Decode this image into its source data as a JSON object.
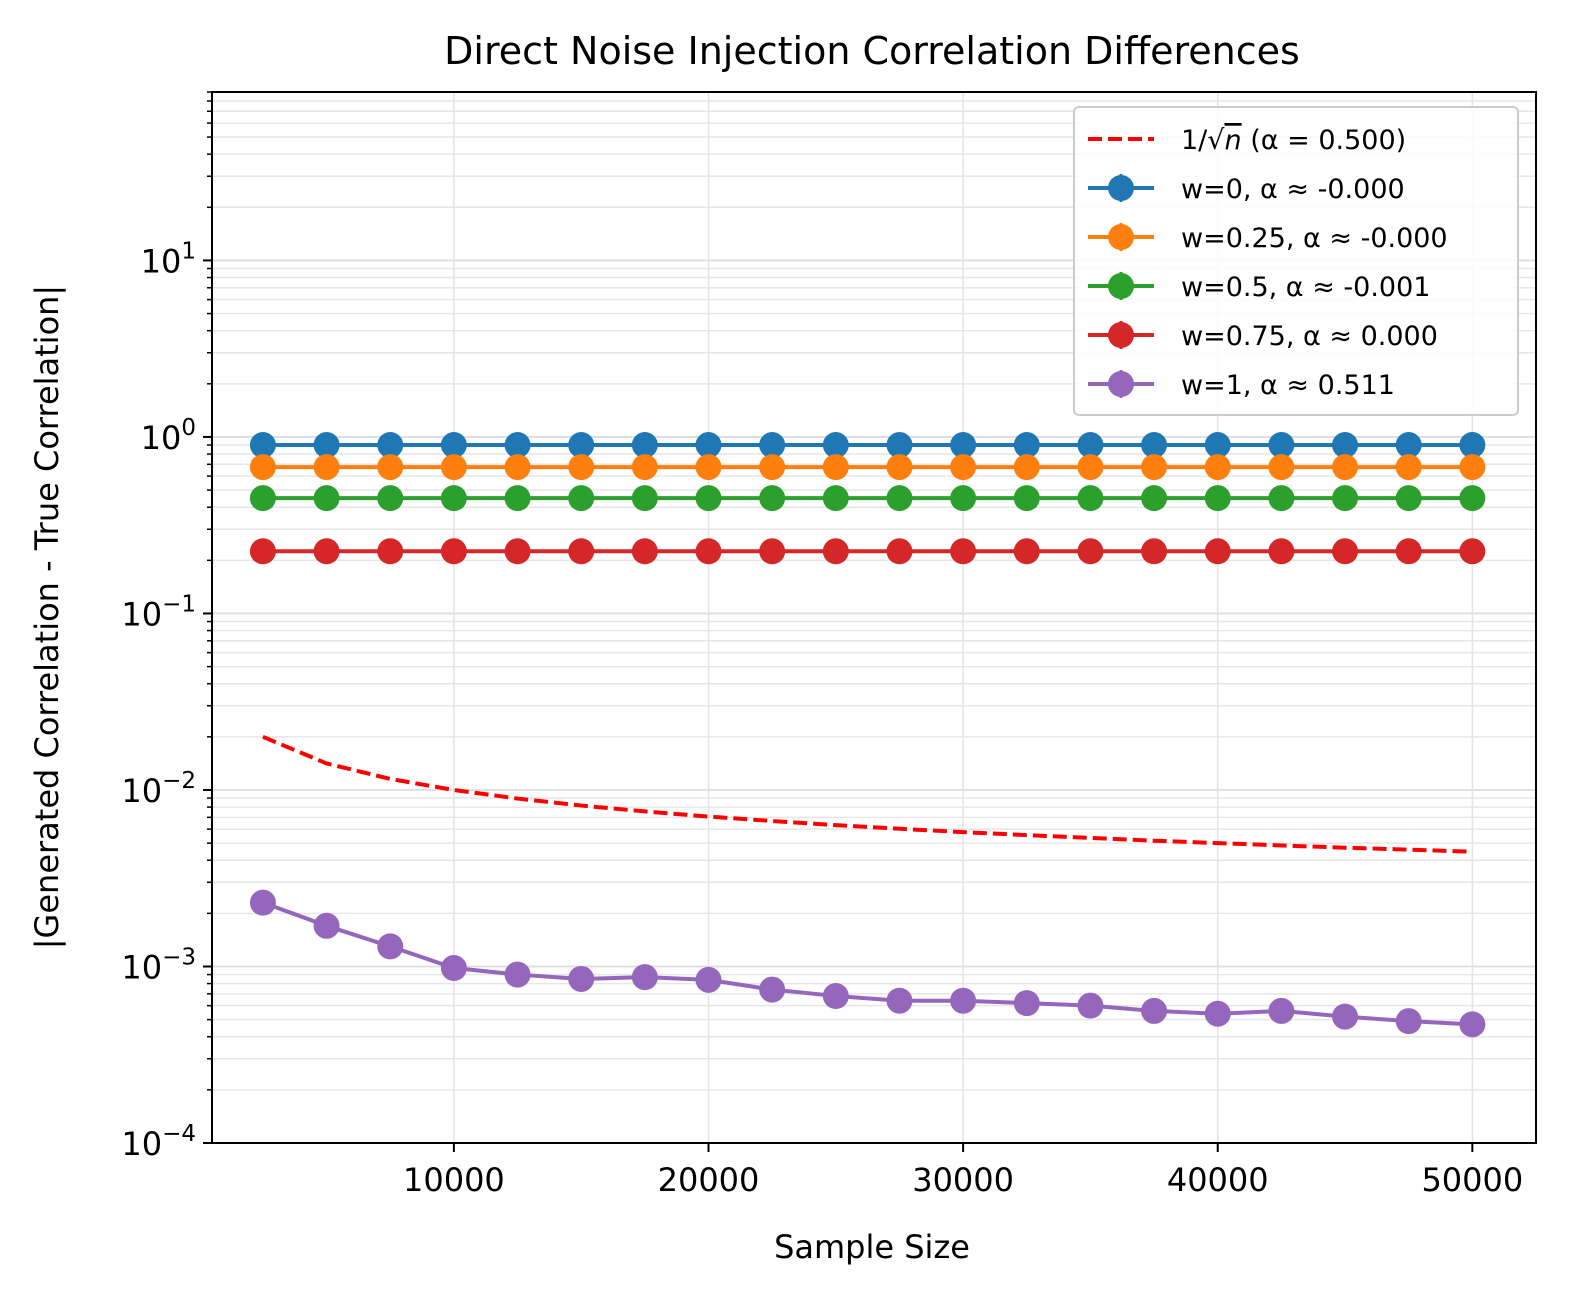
{
  "chart_data": {
    "type": "line",
    "title": "Direct Noise Injection Correlation Differences",
    "xlabel": "Sample Size",
    "ylabel": "|Generated Correlation - True Correlation|",
    "yscale": "log",
    "xlim": [
      500,
      52500
    ],
    "ylim": [
      0.0001,
      90
    ],
    "grid": true,
    "legend_position": "top-right",
    "x_ticks": [
      10000,
      20000,
      30000,
      40000,
      50000
    ],
    "x_tick_labels": [
      "10000",
      "20000",
      "30000",
      "40000",
      "50000"
    ],
    "y_ticks": [
      {
        "value": 10,
        "base": "10",
        "exp": "1"
      },
      {
        "value": 1,
        "base": "10",
        "exp": "0"
      },
      {
        "value": 0.1,
        "base": "10",
        "exp": "−1"
      },
      {
        "value": 0.01,
        "base": "10",
        "exp": "−2"
      },
      {
        "value": 0.001,
        "base": "10",
        "exp": "−3"
      },
      {
        "value": 0.0001,
        "base": "10",
        "exp": "−4"
      }
    ],
    "x": [
      2500,
      5000,
      7500,
      10000,
      12500,
      15000,
      17500,
      20000,
      22500,
      25000,
      27500,
      30000,
      32500,
      35000,
      37500,
      40000,
      42500,
      45000,
      47500,
      50000
    ],
    "reference": {
      "name_prefix": "1/",
      "name_symbol": "√",
      "name_var": "n",
      "name_suffix": " (α = 0.500)",
      "color": "#ff0000",
      "style": "dashed",
      "values": [
        0.02,
        0.01414,
        0.01155,
        0.01,
        0.00894,
        0.00816,
        0.00756,
        0.00707,
        0.00667,
        0.00632,
        0.00603,
        0.00577,
        0.00555,
        0.00535,
        0.00516,
        0.005,
        0.00485,
        0.00471,
        0.00459,
        0.00447
      ]
    },
    "series": [
      {
        "name": "w=0, α ≈ -0.000",
        "color": "#1f77b4",
        "values": [
          0.9,
          0.9,
          0.9,
          0.9,
          0.9,
          0.9,
          0.9,
          0.9,
          0.9,
          0.9,
          0.9,
          0.9,
          0.9,
          0.9,
          0.9,
          0.9,
          0.9,
          0.9,
          0.9,
          0.9
        ]
      },
      {
        "name": "w=0.25, α ≈ -0.000",
        "color": "#ff7f0e",
        "values": [
          0.675,
          0.675,
          0.675,
          0.675,
          0.675,
          0.675,
          0.675,
          0.675,
          0.675,
          0.675,
          0.675,
          0.675,
          0.675,
          0.675,
          0.675,
          0.675,
          0.675,
          0.675,
          0.675,
          0.675
        ]
      },
      {
        "name": "w=0.5, α ≈ -0.001",
        "color": "#2ca02c",
        "values": [
          0.45,
          0.45,
          0.45,
          0.45,
          0.45,
          0.45,
          0.45,
          0.45,
          0.45,
          0.45,
          0.45,
          0.45,
          0.45,
          0.45,
          0.45,
          0.45,
          0.45,
          0.45,
          0.45,
          0.45
        ]
      },
      {
        "name": "w=0.75, α ≈ 0.000",
        "color": "#d62728",
        "values": [
          0.225,
          0.225,
          0.225,
          0.225,
          0.225,
          0.225,
          0.225,
          0.225,
          0.225,
          0.225,
          0.225,
          0.225,
          0.225,
          0.225,
          0.225,
          0.225,
          0.225,
          0.225,
          0.225,
          0.225
        ]
      },
      {
        "name": "w=1, α ≈ 0.511",
        "color": "#9467bd",
        "values": [
          0.0023,
          0.0017,
          0.0013,
          0.00098,
          0.0009,
          0.00085,
          0.00087,
          0.00084,
          0.00074,
          0.00068,
          0.00064,
          0.00064,
          0.00062,
          0.0006,
          0.00056,
          0.00054,
          0.00056,
          0.00052,
          0.00049,
          0.00047
        ]
      }
    ]
  }
}
